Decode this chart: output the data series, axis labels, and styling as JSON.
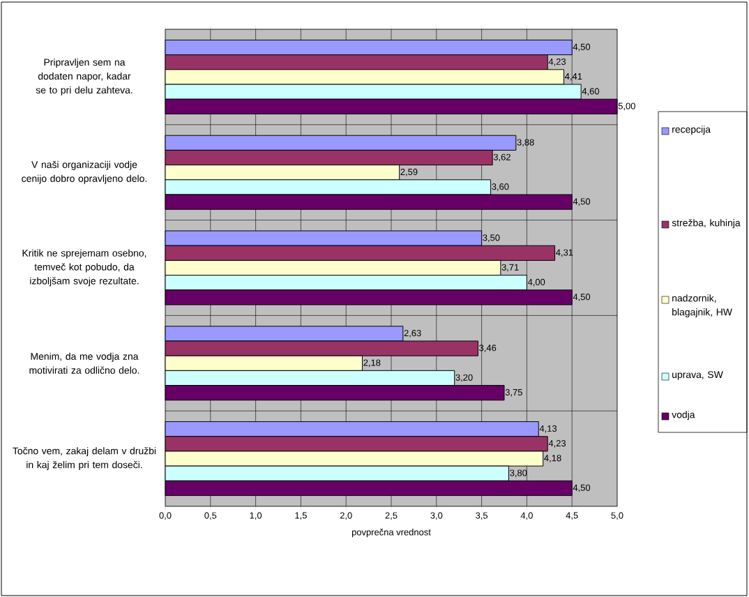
{
  "chart_data": {
    "type": "bar",
    "orientation": "horizontal",
    "categories": [
      "Pripravljen sem na dodaten napor, kadar se to pri delu zahteva.",
      "V naši organizaciji vodje cenijo dobro opravljeno delo.",
      "Kritik ne sprejemam osebno, temveč kot pobudo, da izboljšam svoje rezultate.",
      "Menim, da me vodja zna motivirati za odlično delo.",
      "Točno vem, zakaj delam v družbi in kaj želim pri tem doseči."
    ],
    "series": [
      {
        "name": "recepcija",
        "color": "#9999ff",
        "values": [
          4.5,
          3.88,
          3.5,
          2.63,
          4.13
        ],
        "value_labels": [
          "4,50",
          "3,88",
          "3,50",
          "2,63",
          "4,13"
        ]
      },
      {
        "name": "strežba, kuhinja",
        "color": "#993366",
        "values": [
          4.23,
          3.62,
          4.31,
          3.46,
          4.23
        ],
        "value_labels": [
          "4,23",
          "3,62",
          "4,31",
          "3,46",
          "4,23"
        ]
      },
      {
        "name": "nadzornik, blagajnik, HW",
        "color": "#ffffcc",
        "values": [
          4.41,
          2.59,
          3.71,
          2.18,
          4.18
        ],
        "value_labels": [
          "4,41",
          "2,59",
          "3,71",
          "2,18",
          "4,18"
        ]
      },
      {
        "name": "uprava, SW",
        "color": "#ccffff",
        "values": [
          4.6,
          3.6,
          4.0,
          3.2,
          3.8
        ],
        "value_labels": [
          "4,60",
          "3,60",
          "4,00",
          "3,20",
          "3,80"
        ]
      },
      {
        "name": "vodja",
        "color": "#660066",
        "values": [
          5.0,
          4.5,
          4.5,
          3.75,
          4.5
        ],
        "value_labels": [
          "5,00",
          "4,50",
          "4,50",
          "3,75",
          "4,50"
        ]
      }
    ],
    "xlabel": "povprečna vrednost",
    "xlim": [
      0,
      5
    ],
    "xticks": [
      {
        "value": 0,
        "label": "0,0"
      },
      {
        "value": 0.5,
        "label": "0,5"
      },
      {
        "value": 1,
        "label": "1,0"
      },
      {
        "value": 1.5,
        "label": "1,5"
      },
      {
        "value": 2,
        "label": "2,0"
      },
      {
        "value": 2.5,
        "label": "2,5"
      },
      {
        "value": 3,
        "label": "3,0"
      },
      {
        "value": 3.5,
        "label": "3,5"
      },
      {
        "value": 4,
        "label": "4,0"
      },
      {
        "value": 4.5,
        "label": "4,5"
      },
      {
        "value": 5,
        "label": "5,0"
      }
    ],
    "grid": "x",
    "legend": "right"
  }
}
